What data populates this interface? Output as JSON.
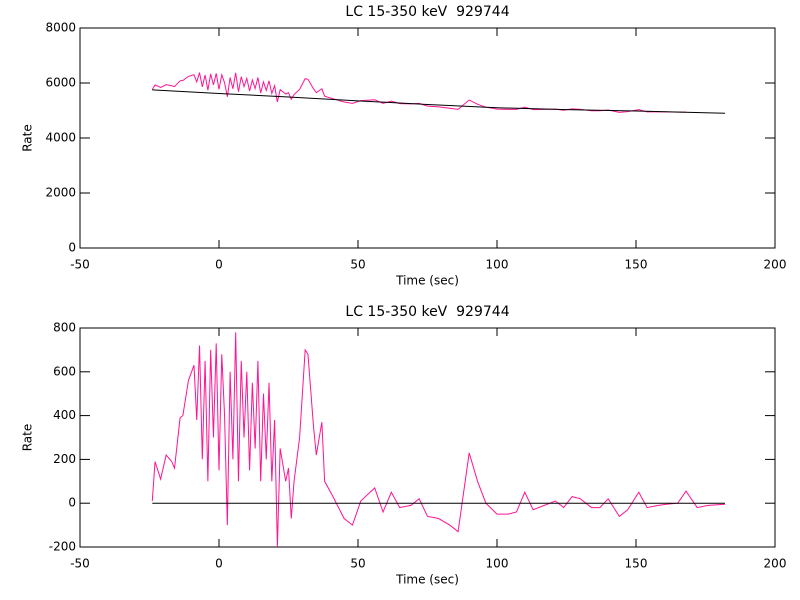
{
  "chart_data": [
    {
      "type": "line",
      "title": "LC 15-350 keV  929744",
      "xlabel": "Time (sec)",
      "ylabel": "Rate",
      "xlim": [
        -50,
        200
      ],
      "xticks": [
        -50,
        0,
        50,
        100,
        150,
        200
      ],
      "ylim": [
        0,
        8000
      ],
      "yticks": [
        0,
        2000,
        4000,
        6000,
        8000
      ],
      "series": [
        {
          "color": "#ff1493",
          "x": [
            -24,
            -23,
            -21,
            -19,
            -17,
            -16,
            -14,
            -13,
            -11,
            -9,
            -8,
            -7,
            -6,
            -5,
            -4,
            -3,
            -2,
            -1,
            0,
            1,
            2,
            3,
            4,
            5,
            6,
            7,
            8,
            9,
            10,
            11,
            12,
            13,
            14,
            15,
            16,
            17,
            18,
            19,
            20,
            21,
            22,
            24,
            25,
            26,
            27,
            29,
            31,
            32,
            34,
            35,
            37,
            38,
            41,
            45,
            48,
            51,
            56,
            59,
            62,
            65,
            69,
            72,
            75,
            79,
            83,
            86,
            90,
            93,
            96,
            100,
            104,
            107,
            110,
            113,
            117,
            121,
            124,
            127,
            130,
            134,
            137,
            140,
            144,
            147,
            151,
            154,
            158,
            161,
            165,
            168
          ],
          "values": [
            5760,
            5930,
            5840,
            5940,
            5900,
            5870,
            6080,
            6090,
            6240,
            6300,
            6040,
            6380,
            5860,
            6290,
            5740,
            6330,
            5930,
            6350,
            5770,
            6300,
            6010,
            5500,
            6200,
            5790,
            6370,
            5680,
            6230,
            5870,
            6170,
            5710,
            6110,
            5800,
            6200,
            5640,
            6040,
            5730,
            6080,
            5620,
            5900,
            5310,
            5760,
            5600,
            5650,
            5410,
            5580,
            5770,
            6160,
            6130,
            5790,
            5650,
            5790,
            5520,
            5430,
            5310,
            5260,
            5360,
            5390,
            5260,
            5340,
            5250,
            5240,
            5260,
            5160,
            5130,
            5080,
            5040,
            5380,
            5230,
            5120,
            5050,
            5040,
            5040,
            5120,
            5030,
            5040,
            5050,
            5010,
            5060,
            5040,
            4990,
            4990,
            5020,
            4930,
            4960,
            5030,
            4950,
            4950,
            4950,
            4940,
            4940
          ]
        },
        {
          "color": "#000000",
          "x": [
            -24,
            0,
            25,
            50,
            75,
            100,
            125,
            150,
            182
          ],
          "values": [
            5750,
            5620,
            5490,
            5350,
            5220,
            5100,
            5030,
            4980,
            4900
          ]
        }
      ]
    },
    {
      "type": "line",
      "title": "LC 15-350 keV  929744",
      "xlabel": "Time (sec)",
      "ylabel": "Rate",
      "xlim": [
        -50,
        200
      ],
      "xticks": [
        -50,
        0,
        50,
        100,
        150,
        200
      ],
      "ylim": [
        -200,
        800
      ],
      "yticks": [
        -200,
        0,
        200,
        400,
        600,
        800
      ],
      "series": [
        {
          "color": "#ff1493",
          "x": [
            -24,
            -23,
            -21,
            -19,
            -17,
            -16,
            -14,
            -13,
            -11,
            -9,
            -8,
            -7,
            -6,
            -5,
            -4,
            -3,
            -2,
            -1,
            0,
            1,
            2,
            3,
            4,
            5,
            6,
            7,
            8,
            9,
            10,
            11,
            12,
            13,
            14,
            15,
            16,
            17,
            18,
            19,
            20,
            21,
            22,
            24,
            25,
            26,
            27,
            29,
            31,
            32,
            34,
            35,
            37,
            38,
            41,
            45,
            48,
            51,
            56,
            59,
            62,
            65,
            69,
            72,
            75,
            79,
            83,
            86,
            90,
            93,
            96,
            100,
            104,
            107,
            110,
            113,
            117,
            121,
            124,
            127,
            130,
            134,
            137,
            140,
            144,
            147,
            151,
            154,
            158,
            161,
            165,
            168,
            172,
            176,
            182
          ],
          "values": [
            10,
            190,
            110,
            220,
            190,
            160,
            390,
            400,
            560,
            630,
            380,
            720,
            200,
            650,
            100,
            700,
            300,
            730,
            150,
            680,
            400,
            -100,
            600,
            200,
            780,
            100,
            650,
            300,
            600,
            150,
            550,
            250,
            650,
            100,
            500,
            200,
            550,
            100,
            380,
            -200,
            250,
            100,
            160,
            -70,
            100,
            300,
            700,
            680,
            350,
            220,
            370,
            100,
            30,
            -70,
            -100,
            10,
            70,
            -40,
            50,
            -20,
            -10,
            20,
            -60,
            -70,
            -100,
            -130,
            230,
            100,
            0,
            -50,
            -50,
            -40,
            50,
            -30,
            -10,
            10,
            -20,
            30,
            20,
            -20,
            -20,
            20,
            -60,
            -30,
            50,
            -20,
            -10,
            -5,
            0,
            55,
            -20,
            -10,
            -5
          ]
        },
        {
          "color": "#000000",
          "x": [
            -24,
            182
          ],
          "values": [
            0,
            0
          ]
        }
      ]
    }
  ]
}
